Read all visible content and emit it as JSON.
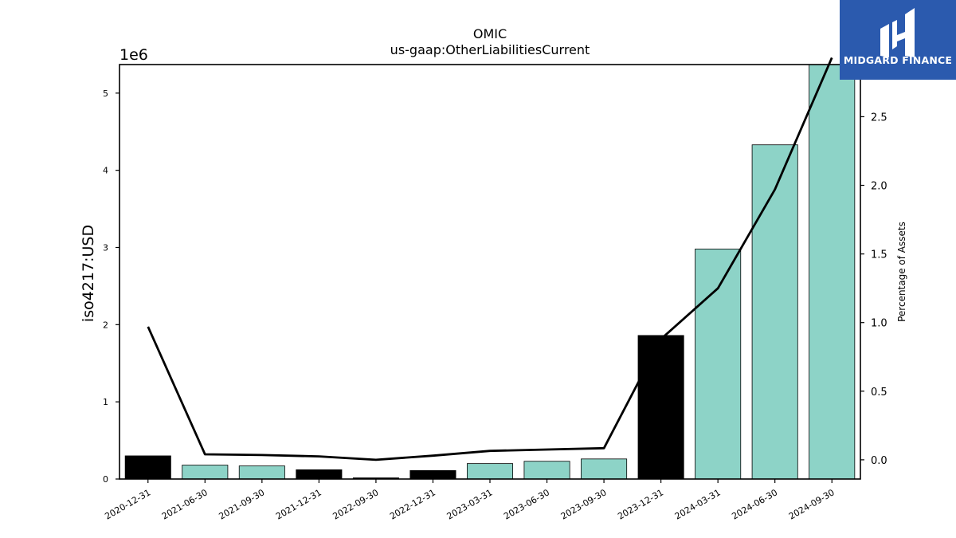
{
  "brand": {
    "name": "MIDGARD FINANCE",
    "logo_icon": "midgard-logo-icon",
    "background": "#2b5aae"
  },
  "chart_data": {
    "type": "bar",
    "title": "OMIC",
    "subtitle": "us-gaap:OtherLiabilitiesCurrent",
    "ylabel": "iso4217:USD",
    "y_offset_label": "1e6",
    "y2label": "Percentage of Assets",
    "categories": [
      "2020-12-31",
      "2021-06-30",
      "2021-09-30",
      "2021-12-31",
      "2022-09-30",
      "2022-12-31",
      "2023-03-31",
      "2023-06-30",
      "2023-09-30",
      "2023-12-31",
      "2024-03-31",
      "2024-06-30",
      "2024-09-30"
    ],
    "series": [
      {
        "values": [
          0.3,
          0.18,
          0.17,
          0.12,
          0.015,
          0.11,
          0.2,
          0.23,
          0.26,
          1.86,
          2.98,
          4.33,
          5.37
        ],
        "colors": [
          "#000000",
          "#8dd3c7",
          "#8dd3c7",
          "#000000",
          "#000000",
          "#000000",
          "#8dd3c7",
          "#8dd3c7",
          "#8dd3c7",
          "#000000",
          "#8dd3c7",
          "#8dd3c7",
          "#8dd3c7"
        ]
      },
      {
        "axis": "right",
        "type": "line",
        "color": "#000000",
        "values": [
          0.97,
          0.04,
          0.035,
          0.025,
          0.0,
          0.03,
          0.065,
          0.075,
          0.085,
          0.88,
          1.25,
          1.97,
          2.93
        ]
      }
    ],
    "ylim": [
      0,
      5.37
    ],
    "y2lim": [
      -0.14,
      2.88
    ],
    "yticks": [
      0,
      1,
      2,
      3,
      4,
      5
    ],
    "y2ticks": [
      0.0,
      0.5,
      1.0,
      1.5,
      2.0,
      2.5
    ],
    "grid": false
  }
}
